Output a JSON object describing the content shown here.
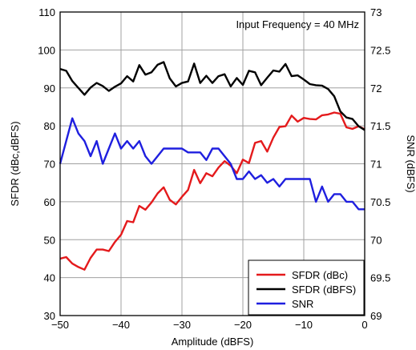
{
  "chart_data": {
    "type": "line",
    "annotation": "Input Frequency = 40 MHz",
    "xlabel": "Amplitude (dBFS)",
    "ylabel_left": "SFDR (dBc,dBFS)",
    "ylabel_right": "SNR (dBFS)",
    "xlim": [
      -50,
      0
    ],
    "ylim_left": [
      30,
      110
    ],
    "ylim_right": [
      69,
      73
    ],
    "x_ticks": [
      "−50",
      "−40",
      "−30",
      "−20",
      "−10",
      "0"
    ],
    "y_left_ticks": [
      "30",
      "40",
      "50",
      "60",
      "70",
      "80",
      "90",
      "100",
      "110"
    ],
    "y_right_ticks": [
      "69",
      "69.5",
      "70",
      "70.5",
      "71",
      "71.5",
      "72",
      "72.5",
      "73"
    ],
    "grid": true,
    "legend_position": "bottom-right",
    "series": [
      {
        "name": "SFDR (dBc)",
        "axis": "left",
        "color": "#e41a1c",
        "x": [
          -50,
          -49,
          -48,
          -47,
          -46,
          -45,
          -44,
          -43,
          -42,
          -41,
          -40,
          -39,
          -38,
          -37,
          -36,
          -35,
          -34,
          -33,
          -32,
          -31,
          -30,
          -29,
          -28,
          -27,
          -26,
          -25,
          -24,
          -23,
          -22,
          -21,
          -20,
          -19,
          -18,
          -17,
          -16,
          -15,
          -14,
          -13,
          -12,
          -11,
          -10,
          -9,
          -8,
          -7,
          -6,
          -5,
          -4,
          -3,
          -2,
          -1,
          0
        ],
        "values": [
          45.0,
          45.4,
          43.7,
          42.8,
          42.1,
          45.2,
          47.4,
          47.4,
          47.0,
          49.4,
          51.3,
          54.9,
          54.6,
          58.9,
          57.9,
          59.8,
          62.2,
          63.8,
          60.5,
          59.3,
          61.3,
          63.1,
          68.4,
          64.9,
          67.5,
          66.7,
          69.0,
          70.7,
          69.5,
          67.5,
          71.1,
          70.2,
          75.5,
          76.0,
          73.2,
          76.9,
          79.7,
          79.9,
          82.7,
          81.1,
          82.1,
          81.8,
          81.7,
          82.8,
          83.0,
          83.5,
          83.2,
          79.6,
          79.2,
          79.9,
          79.1
        ]
      },
      {
        "name": "SFDR (dBFS)",
        "axis": "left",
        "color": "#000000",
        "x": [
          -50,
          -49,
          -48,
          -47,
          -46,
          -45,
          -44,
          -43,
          -42,
          -41,
          -40,
          -39,
          -38,
          -37,
          -36,
          -35,
          -34,
          -33,
          -32,
          -31,
          -30,
          -29,
          -28,
          -27,
          -26,
          -25,
          -24,
          -23,
          -22,
          -21,
          -20,
          -19,
          -18,
          -17,
          -16,
          -15,
          -14,
          -13,
          -12,
          -11,
          -10,
          -9,
          -8,
          -7,
          -6,
          -5,
          -4,
          -3,
          -2,
          -1,
          0
        ],
        "values": [
          95.0,
          94.5,
          91.8,
          90.0,
          88.2,
          90.1,
          91.3,
          90.5,
          89.2,
          90.3,
          91.2,
          93.1,
          91.7,
          96.0,
          93.5,
          94.1,
          96.1,
          96.8,
          92.5,
          90.4,
          91.3,
          91.7,
          96.4,
          91.3,
          93.2,
          91.3,
          93.1,
          93.6,
          90.4,
          92.6,
          90.8,
          94.5,
          94.1,
          90.7,
          92.7,
          94.6,
          94.3,
          96.3,
          93.1,
          93.3,
          92.2,
          91.0,
          90.7,
          90.6,
          89.7,
          87.8,
          83.8,
          82.2,
          81.8,
          79.9,
          78.9
        ]
      },
      {
        "name": "SNR",
        "axis": "right",
        "color": "#1f1fdf",
        "x": [
          -50,
          -49,
          -48,
          -47,
          -46,
          -45,
          -44,
          -43,
          -42,
          -41,
          -40,
          -39,
          -38,
          -37,
          -36,
          -35,
          -34,
          -33,
          -32,
          -31,
          -30,
          -29,
          -28,
          -27,
          -26,
          -25,
          -24,
          -23,
          -22,
          -21,
          -20,
          -19,
          -18,
          -17,
          -16,
          -15,
          -14,
          -13,
          -12,
          -11,
          -10,
          -9,
          -8,
          -7,
          -6,
          -5,
          -4,
          -3,
          -2,
          -1,
          0
        ],
        "values": [
          71.0,
          71.3,
          71.6,
          71.4,
          71.3,
          71.1,
          71.3,
          71.0,
          71.2,
          71.4,
          71.2,
          71.3,
          71.2,
          71.3,
          71.1,
          71.0,
          71.1,
          71.2,
          71.2,
          71.2,
          71.2,
          71.15,
          71.15,
          71.15,
          71.05,
          71.2,
          71.2,
          71.1,
          71.0,
          70.8,
          70.8,
          70.9,
          70.8,
          70.85,
          70.75,
          70.8,
          70.7,
          70.8,
          70.8,
          70.8,
          70.8,
          70.8,
          70.5,
          70.7,
          70.5,
          70.6,
          70.6,
          70.5,
          70.5,
          70.4,
          70.4
        ]
      }
    ]
  }
}
